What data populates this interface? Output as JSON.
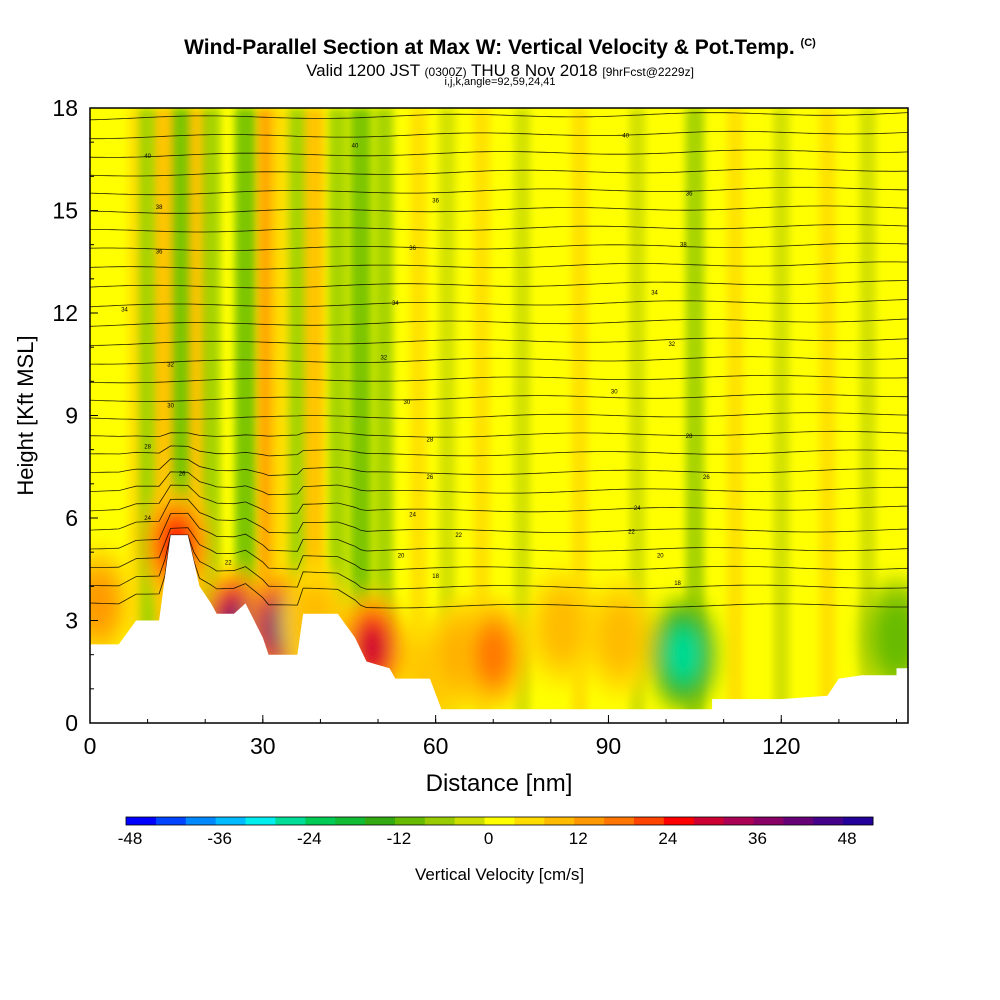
{
  "header": {
    "title_main": "Wind-Parallel Section at Max W: Vertical Velocity & Pot.Temp.",
    "title_mark": "(C)",
    "valid_prefix": "Valid 1200 JST",
    "valid_utc": "(0300Z)",
    "valid_date": "THU 8 Nov 2018",
    "forecast_tag": "[9hrFcst@2229z]",
    "ijk_label": "i,j,k,angle=92,59,24,41"
  },
  "chart_data": {
    "type": "heatmap",
    "xlabel": "Distance [nm]",
    "ylabel": "Height [Kft MSL]",
    "xlim": [
      0,
      142
    ],
    "ylim": [
      0,
      18
    ],
    "x_ticks": [
      0,
      30,
      60,
      90,
      120
    ],
    "y_ticks": [
      0,
      3,
      6,
      9,
      12,
      15,
      18
    ],
    "colorbar": {
      "label": "Vertical Velocity [cm/s]",
      "min": -48,
      "max": 52,
      "step": 4,
      "tick_values": [
        -48,
        -36,
        -24,
        -12,
        0,
        12,
        24,
        36,
        48
      ],
      "colors": [
        "#0000ff",
        "#0044ff",
        "#0088ff",
        "#00bbff",
        "#00eeee",
        "#00dd99",
        "#00cc55",
        "#11bb33",
        "#33aa11",
        "#66bb00",
        "#99cc00",
        "#ccdd00",
        "#ffff00",
        "#ffdd00",
        "#ffbb00",
        "#ff9900",
        "#ff7700",
        "#ff4400",
        "#ff0000",
        "#cc0033",
        "#aa0055",
        "#880066",
        "#660077",
        "#440088",
        "#220099"
      ]
    },
    "terrain": [
      [
        0,
        2.3
      ],
      [
        5,
        2.3
      ],
      [
        8,
        3.0
      ],
      [
        12,
        3.0
      ],
      [
        14,
        5.5
      ],
      [
        17,
        5.5
      ],
      [
        19,
        4.0
      ],
      [
        21,
        3.5
      ],
      [
        22,
        3.2
      ],
      [
        25,
        3.2
      ],
      [
        27,
        3.5
      ],
      [
        30,
        2.5
      ],
      [
        31,
        2.0
      ],
      [
        36,
        2.0
      ],
      [
        37,
        3.2
      ],
      [
        43,
        3.2
      ],
      [
        46,
        2.5
      ],
      [
        48,
        1.8
      ],
      [
        52,
        1.6
      ],
      [
        53,
        1.3
      ],
      [
        59,
        1.3
      ],
      [
        61,
        0.4
      ],
      [
        68,
        0.4
      ],
      [
        100,
        0.4
      ],
      [
        102,
        0.4
      ],
      [
        108,
        0.4
      ],
      [
        108,
        0.7
      ],
      [
        120,
        0.7
      ],
      [
        128,
        0.8
      ],
      [
        130,
        1.3
      ],
      [
        134,
        1.4
      ],
      [
        140,
        1.4
      ],
      [
        140,
        1.6
      ],
      [
        142,
        1.6
      ]
    ],
    "updrafts": [
      {
        "x": 1.5,
        "z": 3.5,
        "w": 12
      },
      {
        "x": 15,
        "z": 5.2,
        "w": 24
      },
      {
        "x": 25,
        "z": 2.9,
        "w": 36
      },
      {
        "x": 33,
        "z": 2.8,
        "w": 40
      },
      {
        "x": 39,
        "z": 3.0,
        "w": 8
      },
      {
        "x": 49,
        "z": 2.2,
        "w": 28
      },
      {
        "x": 60,
        "z": 1.5,
        "w": 8
      },
      {
        "x": 65,
        "z": 2.0,
        "w": 12
      },
      {
        "x": 70,
        "z": 2.0,
        "w": 16
      },
      {
        "x": 82,
        "z": 2.8,
        "w": 8
      },
      {
        "x": 92,
        "z": 2.5,
        "w": 8
      }
    ],
    "downdrafts": [
      {
        "x": 103,
        "z": 2.0,
        "w": -24
      },
      {
        "x": 140,
        "z": 2.5,
        "w": -8
      }
    ],
    "streaks": [
      {
        "x": 8,
        "w": 4
      },
      {
        "x": 10,
        "w": -8
      },
      {
        "x": 13,
        "w": 8
      },
      {
        "x": 16,
        "w": -12
      },
      {
        "x": 19,
        "w": 8
      },
      {
        "x": 21,
        "w": -8
      },
      {
        "x": 27,
        "w": -12
      },
      {
        "x": 31,
        "w": 12
      },
      {
        "x": 33,
        "w": 4
      },
      {
        "x": 36,
        "w": -8
      },
      {
        "x": 39,
        "w": 8
      },
      {
        "x": 43,
        "w": -8
      },
      {
        "x": 47,
        "w": -12
      },
      {
        "x": 51,
        "w": -8
      },
      {
        "x": 57,
        "w": 4
      },
      {
        "x": 62,
        "w": -4
      },
      {
        "x": 68,
        "w": 4
      },
      {
        "x": 75,
        "w": -4
      },
      {
        "x": 85,
        "w": 4
      },
      {
        "x": 95,
        "w": -4
      },
      {
        "x": 105,
        "w": -8
      },
      {
        "x": 112,
        "w": 4
      },
      {
        "x": 120,
        "w": -4
      },
      {
        "x": 128,
        "w": 4
      },
      {
        "x": 135,
        "w": -4
      }
    ],
    "isentrope_labels": [
      {
        "x": 10,
        "z": 16.6,
        "text": "40"
      },
      {
        "x": 46,
        "z": 16.9,
        "text": "40"
      },
      {
        "x": 93,
        "z": 17.2,
        "text": "40"
      },
      {
        "x": 12,
        "z": 15.1,
        "text": "38"
      },
      {
        "x": 60,
        "z": 15.3,
        "text": "36"
      },
      {
        "x": 104,
        "z": 15.5,
        "text": "36"
      },
      {
        "x": 12,
        "z": 13.8,
        "text": "36"
      },
      {
        "x": 56,
        "z": 13.9,
        "text": "36"
      },
      {
        "x": 103,
        "z": 14.0,
        "text": "38"
      },
      {
        "x": 6,
        "z": 12.1,
        "text": "34"
      },
      {
        "x": 53,
        "z": 12.3,
        "text": "34"
      },
      {
        "x": 98,
        "z": 12.6,
        "text": "34"
      },
      {
        "x": 14,
        "z": 10.5,
        "text": "32"
      },
      {
        "x": 51,
        "z": 10.7,
        "text": "32"
      },
      {
        "x": 101,
        "z": 11.1,
        "text": "32"
      },
      {
        "x": 14,
        "z": 9.3,
        "text": "30"
      },
      {
        "x": 55,
        "z": 9.4,
        "text": "30"
      },
      {
        "x": 91,
        "z": 9.7,
        "text": "30"
      },
      {
        "x": 10,
        "z": 8.1,
        "text": "28"
      },
      {
        "x": 59,
        "z": 8.3,
        "text": "28"
      },
      {
        "x": 104,
        "z": 8.4,
        "text": "28"
      },
      {
        "x": 16,
        "z": 7.3,
        "text": "26"
      },
      {
        "x": 59,
        "z": 7.2,
        "text": "26"
      },
      {
        "x": 107,
        "z": 7.2,
        "text": "26"
      },
      {
        "x": 10,
        "z": 6.0,
        "text": "24"
      },
      {
        "x": 56,
        "z": 6.1,
        "text": "24"
      },
      {
        "x": 95,
        "z": 6.3,
        "text": "24"
      },
      {
        "x": 24,
        "z": 4.7,
        "text": "22"
      },
      {
        "x": 64,
        "z": 5.5,
        "text": "22"
      },
      {
        "x": 94,
        "z": 5.6,
        "text": "22"
      },
      {
        "x": 54,
        "z": 4.9,
        "text": "20"
      },
      {
        "x": 99,
        "z": 4.9,
        "text": "20"
      },
      {
        "x": 60,
        "z": 4.3,
        "text": "18"
      },
      {
        "x": 102,
        "z": 4.1,
        "text": "18"
      }
    ]
  }
}
